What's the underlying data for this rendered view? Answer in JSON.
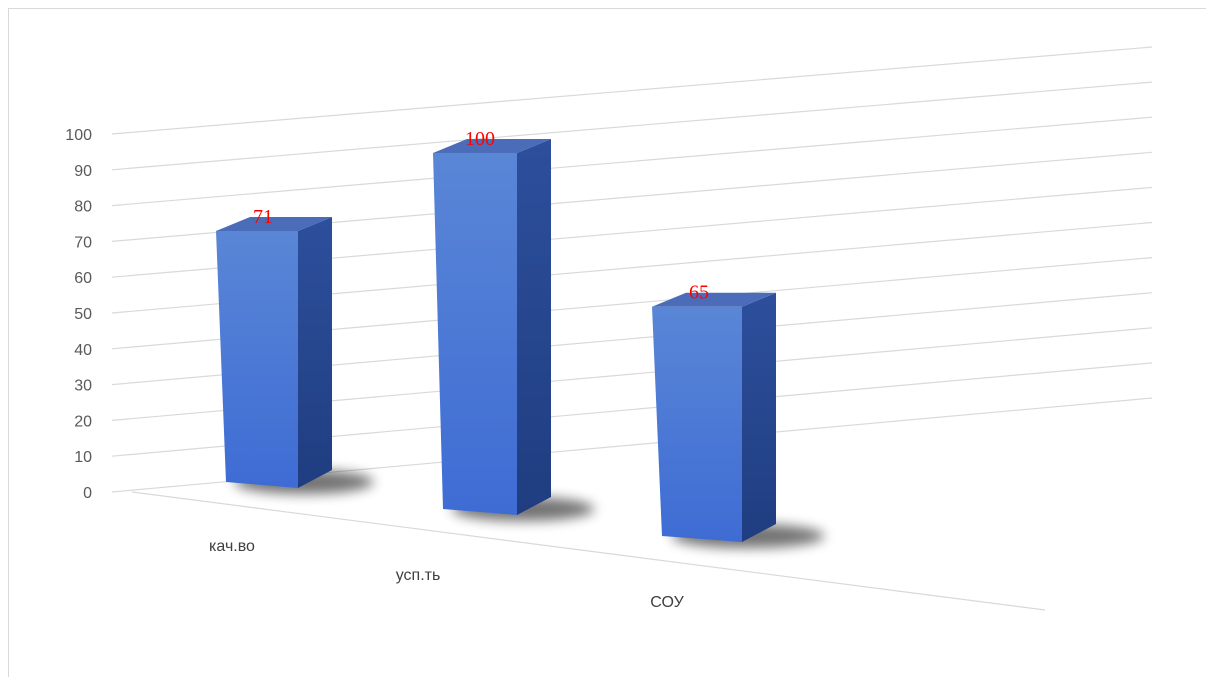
{
  "chart_data": {
    "type": "bar",
    "style": "3d-column",
    "categories": [
      "кач.во",
      "усп.ть",
      "СОУ"
    ],
    "values": [
      71,
      100,
      65
    ],
    "ylim": [
      0,
      100
    ],
    "yticks": [
      0,
      10,
      20,
      30,
      40,
      50,
      60,
      70,
      80,
      90,
      100
    ],
    "grid": true,
    "legend": "none",
    "data_labels": true,
    "colors": {
      "bar_front_top": "#5a86d6",
      "bar_front_bottom": "#3e6cd4",
      "bar_side": "#2d4f9c",
      "bar_top": "#4b6db9",
      "data_label": "#ff0000",
      "gridline": "#d9d9d9",
      "axis_text": "#595959"
    }
  }
}
